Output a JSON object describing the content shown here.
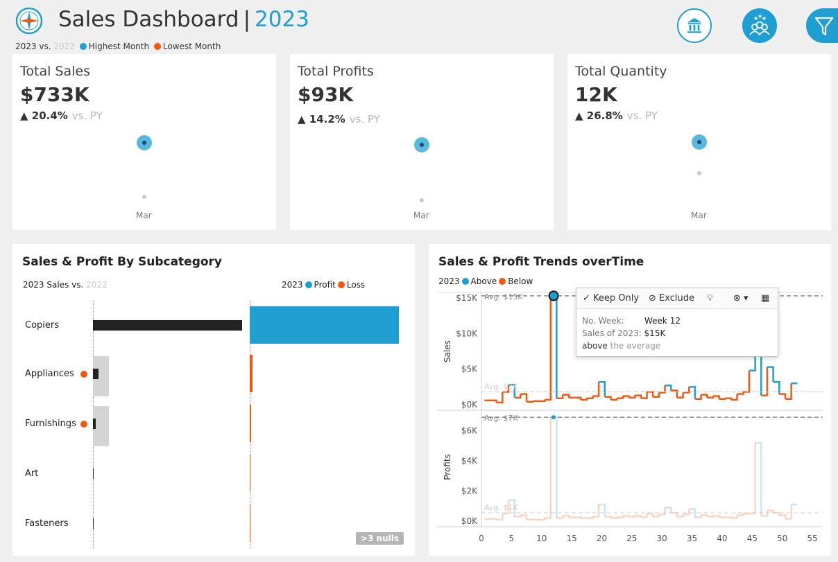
{
  "header": {
    "title": "Sales Dashboard",
    "separator": "|",
    "year": "2023",
    "legend_prefix": "2023 vs.",
    "legend_compare_year": "2022",
    "legend_highest": "Highest Month",
    "legend_lowest": "Lowest Month"
  },
  "kpis": [
    {
      "title": "Total Sales",
      "value": "$733K",
      "change": "▲ 20.4%",
      "vs": "vs. PY",
      "month": "Mar"
    },
    {
      "title": "Total Profits",
      "value": "$93K",
      "change": "▲ 14.2%",
      "vs": "vs. PY",
      "month": "Mar"
    },
    {
      "title": "Total Quantity",
      "value": "12K",
      "change": "▲ 26.8%",
      "vs": "vs. PY",
      "month": "Mar"
    }
  ],
  "subcategory_panel": {
    "title": "Sales & Profit By Subcategory",
    "sales_legend_prefix": "2023 Sales vs.",
    "sales_legend_year": "2022",
    "profit_legend_prefix": "2023",
    "profit_label": "Profit",
    "loss_label": "Loss",
    "nulls_badge": ">3 nulls"
  },
  "trend_panel": {
    "title": "Sales & Profit Trends overTime",
    "legend_prefix": "2023",
    "above_label": "Above",
    "below_label": "Below"
  },
  "tooltip": {
    "keep_only": "✓ Keep Only",
    "exclude": "⊘ Exclude",
    "row1_key": "No. Week:",
    "row1_value": "Week 12",
    "row2_key": "Sales of 2023:",
    "row2_value": "$15K",
    "note_bold": "above",
    "note_rest": "the average"
  },
  "colors": {
    "accent": "#1f9ed1",
    "below": "#f2590f",
    "current_bar": "#222222",
    "prior_bar": "#d4d4d4",
    "avg_line": "#999999"
  },
  "chart_data": [
    {
      "type": "bar",
      "title": "Sales & Profit By Subcategory",
      "categories": [
        "Copiers",
        "Appliances",
        "Furnishings",
        "Art",
        "Fasteners"
      ],
      "loss_markers": [
        false,
        true,
        true,
        false,
        false
      ],
      "series": [
        {
          "name": "2023 Sales",
          "values": [
            149000,
            5500,
            3000,
            700,
            350
          ]
        },
        {
          "name": "2022",
          "values": [
            0,
            11000,
            11000,
            0,
            0
          ]
        },
        {
          "name": "Profit",
          "values": [
            55000,
            1000,
            600,
            200,
            150
          ]
        }
      ]
    },
    {
      "type": "line",
      "title": "Sales & Profit Trends overTime",
      "xlabel": "",
      "ylabel": "Sales",
      "ylim": [
        0,
        16000
      ],
      "x_ticks": [
        0,
        5,
        10,
        15,
        20,
        25,
        30,
        35,
        40,
        45,
        50,
        55
      ],
      "y_ticks": [
        "$0K",
        "$5K",
        "$10K",
        "$15K"
      ],
      "average_label": "Avg. $15K",
      "average_label_2": "Avg. $2K",
      "average": 1800,
      "x": [
        1,
        2,
        3,
        4,
        5,
        6,
        7,
        8,
        9,
        10,
        11,
        12,
        13,
        14,
        15,
        16,
        17,
        18,
        19,
        20,
        21,
        22,
        23,
        24,
        25,
        26,
        27,
        28,
        29,
        30,
        31,
        32,
        33,
        34,
        35,
        36,
        37,
        38,
        39,
        40,
        41,
        42,
        43,
        44,
        45,
        46,
        47,
        48,
        49,
        50,
        51,
        52
      ],
      "values": [
        600,
        600,
        300,
        1800,
        2800,
        1000,
        1500,
        400,
        500,
        500,
        700,
        15300,
        900,
        1400,
        1000,
        1000,
        700,
        900,
        1200,
        3200,
        1100,
        700,
        900,
        1200,
        1000,
        1300,
        900,
        1800,
        1100,
        1700,
        2700,
        2000,
        1000,
        1700,
        2500,
        800,
        1400,
        1000,
        1200,
        800,
        900,
        700,
        1500,
        1800,
        4800,
        13000,
        1300,
        5300,
        3200,
        1500,
        800,
        3000
      ]
    },
    {
      "type": "line",
      "title": "",
      "ylabel": "Profits",
      "ylim": [
        0,
        7000
      ],
      "x_ticks": [
        0,
        5,
        10,
        15,
        20,
        25,
        30,
        35,
        40,
        45,
        50,
        55
      ],
      "y_ticks": [
        "$0K",
        "$2K",
        "$4K",
        "$6K"
      ],
      "average_label": "Avg. $7K",
      "average_label_2": "Avg. $1K",
      "average": 550,
      "x": [
        1,
        2,
        3,
        4,
        5,
        6,
        7,
        8,
        9,
        10,
        11,
        12,
        13,
        14,
        15,
        16,
        17,
        18,
        19,
        20,
        21,
        22,
        23,
        24,
        25,
        26,
        27,
        28,
        29,
        30,
        31,
        32,
        33,
        34,
        35,
        36,
        37,
        38,
        39,
        40,
        41,
        42,
        43,
        44,
        45,
        46,
        47,
        48,
        49,
        50,
        51,
        52
      ],
      "values": [
        150,
        150,
        100,
        500,
        1400,
        300,
        400,
        100,
        100,
        100,
        200,
        6900,
        200,
        350,
        250,
        250,
        200,
        200,
        300,
        1100,
        300,
        200,
        250,
        350,
        300,
        350,
        250,
        500,
        300,
        450,
        900,
        550,
        300,
        450,
        800,
        250,
        400,
        300,
        350,
        250,
        250,
        200,
        400,
        500,
        500,
        5200,
        350,
        700,
        550,
        400,
        150,
        1100
      ]
    }
  ]
}
